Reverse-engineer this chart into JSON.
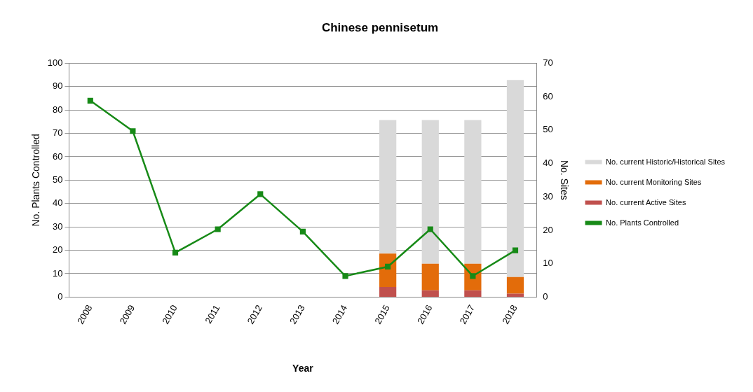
{
  "chart_data": {
    "type": "bar",
    "title": "Chinese pennisetum",
    "xlabel": "Year",
    "ylabel": "No. Plants Controlled",
    "y2label": "No. Sites",
    "categories": [
      "2008",
      "2009",
      "2010",
      "2011",
      "2012",
      "2013",
      "2014",
      "2015",
      "2016",
      "2017",
      "2018"
    ],
    "stacked": true,
    "legend": "right",
    "grid": "y",
    "ylim": [
      0,
      100
    ],
    "yticks": [
      0,
      10,
      20,
      30,
      40,
      50,
      60,
      70,
      80,
      90,
      100
    ],
    "y2lim": [
      0,
      70
    ],
    "y2ticks": [
      0,
      10,
      20,
      30,
      40,
      50,
      60,
      70
    ],
    "series": [
      {
        "name": "No. current Active Sites",
        "axis": "y2",
        "color": "#c0504d",
        "values": [
          null,
          null,
          null,
          null,
          null,
          null,
          null,
          3,
          2,
          2,
          1
        ]
      },
      {
        "name": "No. current Monitoring Sites",
        "axis": "y2",
        "color": "#e36c0a",
        "values": [
          null,
          null,
          null,
          null,
          null,
          null,
          null,
          10,
          8,
          8,
          5
        ]
      },
      {
        "name": "No. current Historic/Historical Sites",
        "axis": "y2",
        "color": "#d9d9d9",
        "values": [
          null,
          null,
          null,
          null,
          null,
          null,
          null,
          40,
          43,
          43,
          59
        ]
      },
      {
        "name": "No. Plants Controlled",
        "type": "line",
        "axis": "y",
        "color": "#178a17",
        "marker": "square",
        "values": [
          84,
          71,
          19,
          29,
          44,
          28,
          9,
          13,
          29,
          9,
          20
        ]
      }
    ]
  }
}
